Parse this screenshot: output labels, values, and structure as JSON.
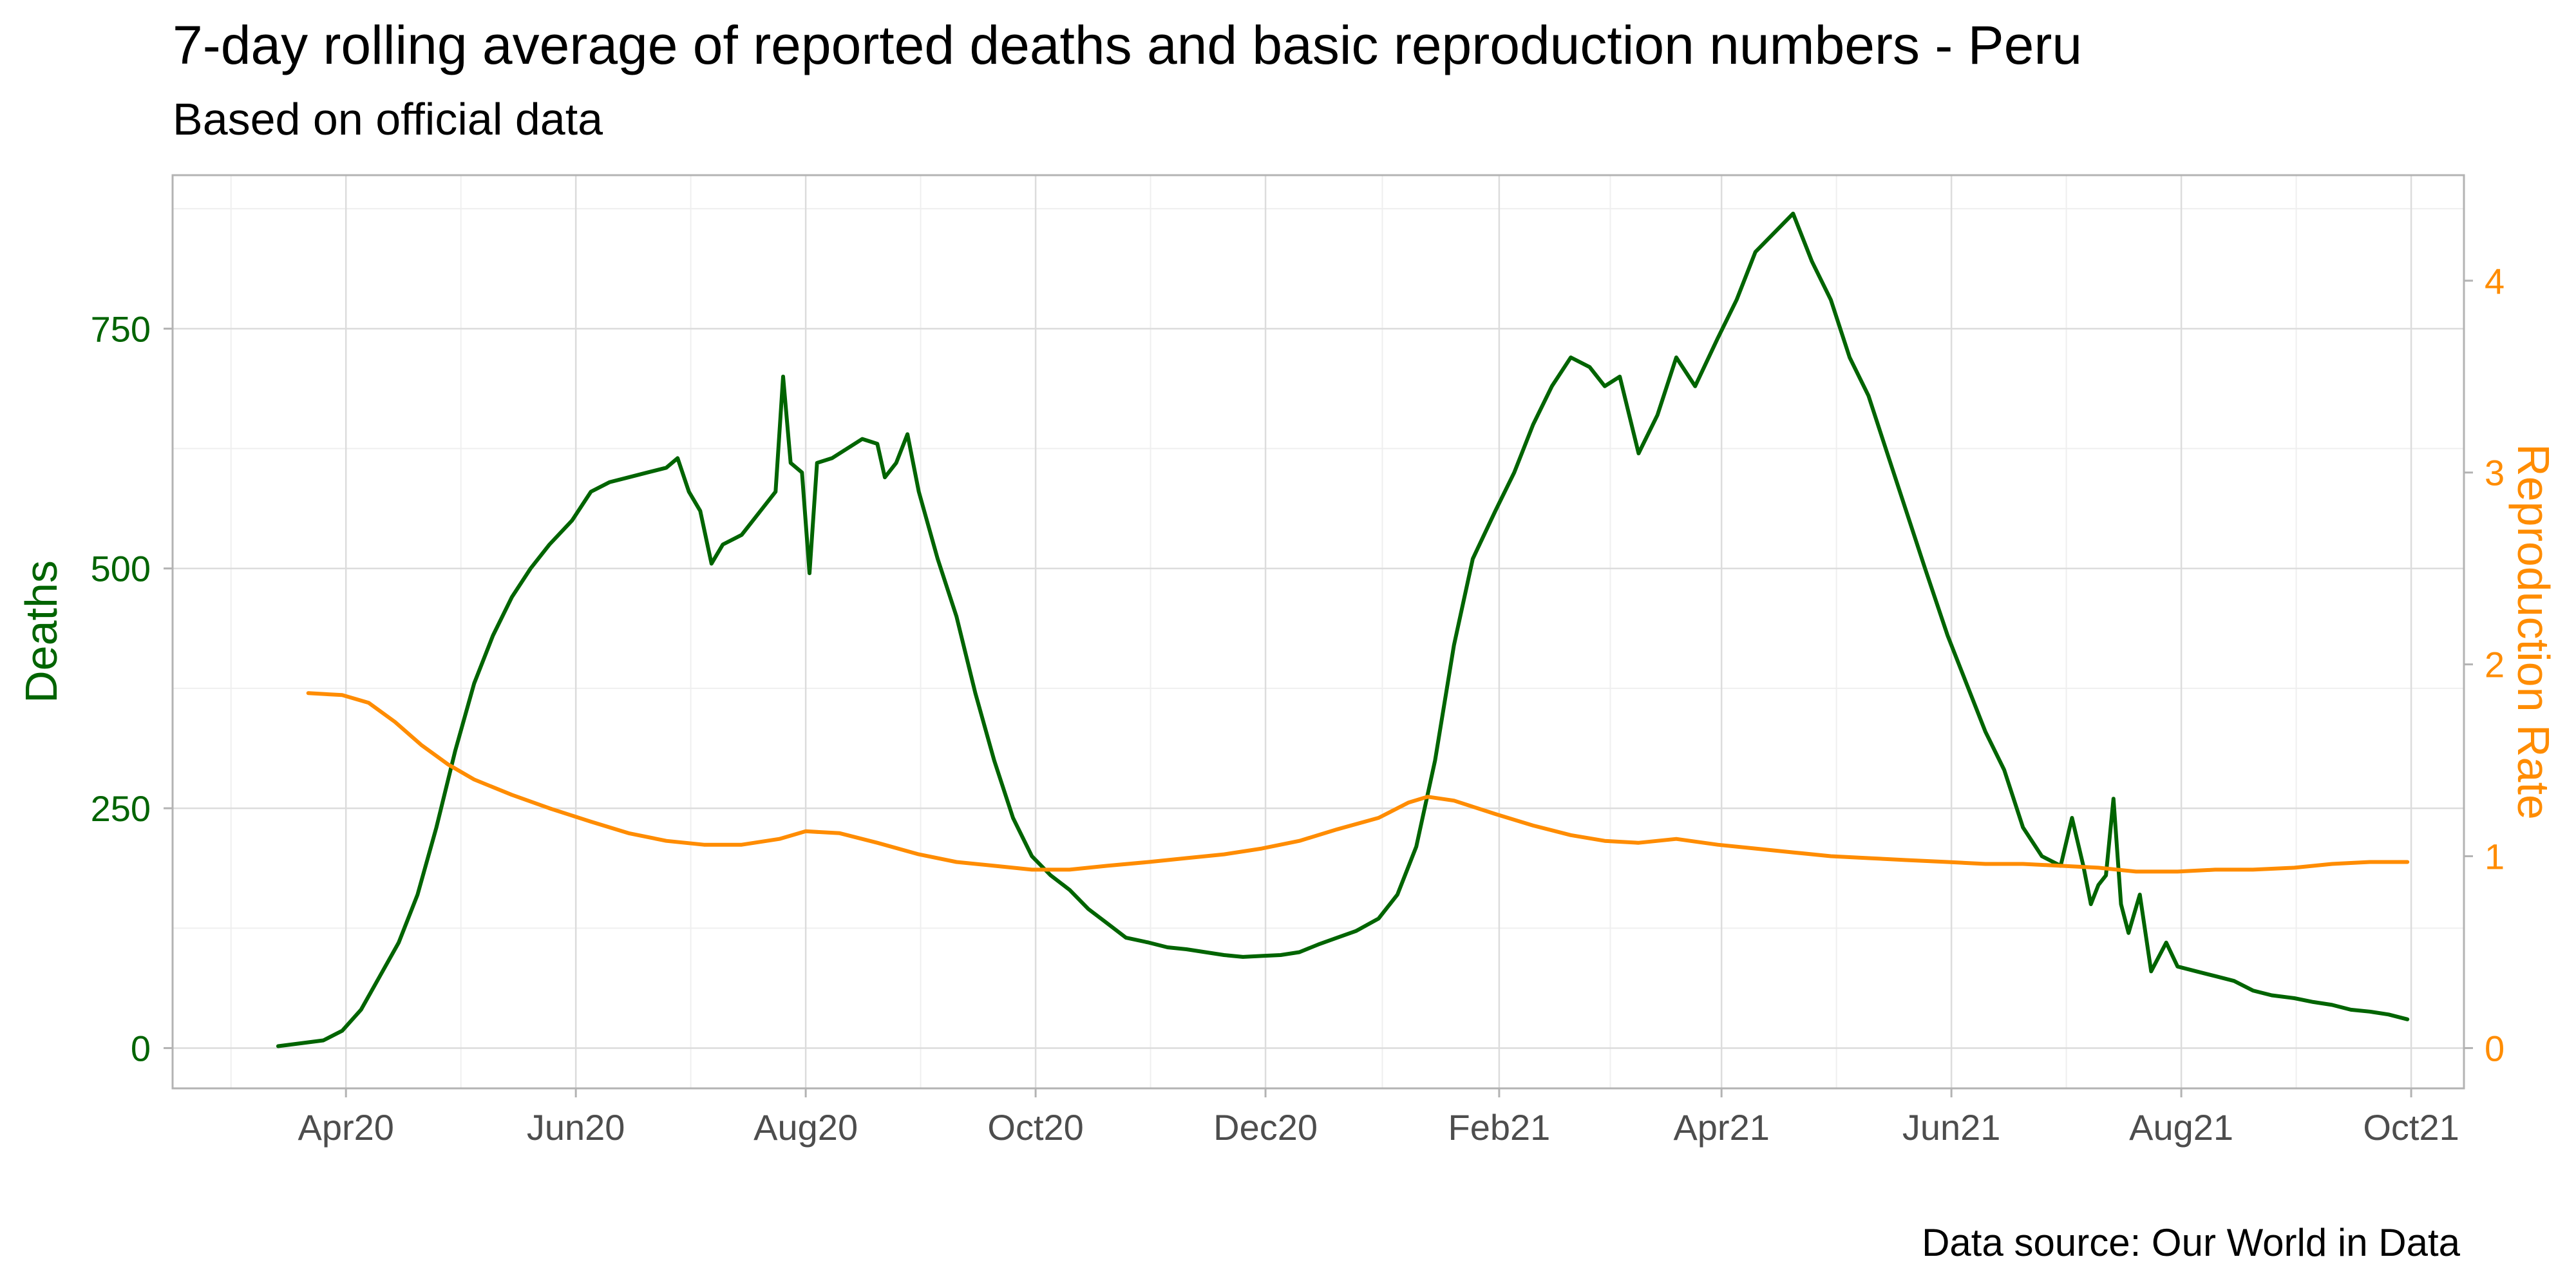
{
  "title": "7-day rolling average of reported deaths and basic reproduction numbers - Peru",
  "subtitle": "Based on official data",
  "caption": "Data source: Our World in Data",
  "colors": {
    "deaths": "#006400",
    "reproduction": "#FF8C00",
    "grid_major": "#DCDCDC",
    "grid_minor": "#EFEFEF",
    "panel_border": "#B3B3B3",
    "tick_text_x": "#4D4D4D"
  },
  "chart_data": {
    "type": "line",
    "grid": true,
    "x_axis": {
      "type": "date",
      "range": [
        "2020-02-15",
        "2021-10-15"
      ],
      "ticks": [
        {
          "date": "2020-04-01",
          "label": "Apr20"
        },
        {
          "date": "2020-06-01",
          "label": "Jun20"
        },
        {
          "date": "2020-08-01",
          "label": "Aug20"
        },
        {
          "date": "2020-10-01",
          "label": "Oct20"
        },
        {
          "date": "2020-12-01",
          "label": "Dec20"
        },
        {
          "date": "2021-02-01",
          "label": "Feb21"
        },
        {
          "date": "2021-04-01",
          "label": "Apr21"
        },
        {
          "date": "2021-06-01",
          "label": "Jun21"
        },
        {
          "date": "2021-08-01",
          "label": "Aug21"
        },
        {
          "date": "2021-10-01",
          "label": "Oct21"
        }
      ]
    },
    "y_left": {
      "label": "Deaths",
      "range": [
        -42,
        910
      ],
      "ticks": [
        0,
        250,
        500,
        750
      ],
      "tick_labels": [
        "0",
        "250",
        "500",
        "750"
      ]
    },
    "y_right": {
      "label": "Reproduction Rate",
      "range": [
        -0.21,
        4.55
      ],
      "ticks": [
        0,
        1,
        2,
        3,
        4
      ],
      "tick_labels": [
        "0",
        "1",
        "2",
        "3",
        "4"
      ]
    },
    "series": [
      {
        "axis": "left",
        "points": [
          [
            "2020-03-14",
            2
          ],
          [
            "2020-03-20",
            5
          ],
          [
            "2020-03-26",
            8
          ],
          [
            "2020-03-31",
            18
          ],
          [
            "2020-04-05",
            40
          ],
          [
            "2020-04-10",
            75
          ],
          [
            "2020-04-15",
            110
          ],
          [
            "2020-04-20",
            160
          ],
          [
            "2020-04-25",
            230
          ],
          [
            "2020-04-30",
            310
          ],
          [
            "2020-05-05",
            380
          ],
          [
            "2020-05-10",
            430
          ],
          [
            "2020-05-15",
            470
          ],
          [
            "2020-05-20",
            500
          ],
          [
            "2020-05-25",
            525
          ],
          [
            "2020-05-31",
            550
          ],
          [
            "2020-06-05",
            580
          ],
          [
            "2020-06-10",
            590
          ],
          [
            "2020-06-15",
            595
          ],
          [
            "2020-06-20",
            600
          ],
          [
            "2020-06-25",
            605
          ],
          [
            "2020-06-28",
            615
          ],
          [
            "2020-07-01",
            580
          ],
          [
            "2020-07-04",
            560
          ],
          [
            "2020-07-07",
            505
          ],
          [
            "2020-07-10",
            525
          ],
          [
            "2020-07-15",
            535
          ],
          [
            "2020-07-20",
            560
          ],
          [
            "2020-07-24",
            580
          ],
          [
            "2020-07-26",
            700
          ],
          [
            "2020-07-28",
            610
          ],
          [
            "2020-07-31",
            600
          ],
          [
            "2020-08-02",
            495
          ],
          [
            "2020-08-04",
            610
          ],
          [
            "2020-08-08",
            615
          ],
          [
            "2020-08-12",
            625
          ],
          [
            "2020-08-16",
            635
          ],
          [
            "2020-08-20",
            630
          ],
          [
            "2020-08-22",
            595
          ],
          [
            "2020-08-25",
            610
          ],
          [
            "2020-08-28",
            640
          ],
          [
            "2020-08-31",
            580
          ],
          [
            "2020-09-05",
            510
          ],
          [
            "2020-09-10",
            450
          ],
          [
            "2020-09-15",
            370
          ],
          [
            "2020-09-20",
            300
          ],
          [
            "2020-09-25",
            240
          ],
          [
            "2020-09-30",
            200
          ],
          [
            "2020-10-05",
            180
          ],
          [
            "2020-10-10",
            165
          ],
          [
            "2020-10-15",
            145
          ],
          [
            "2020-10-20",
            130
          ],
          [
            "2020-10-25",
            115
          ],
          [
            "2020-10-31",
            110
          ],
          [
            "2020-11-05",
            105
          ],
          [
            "2020-11-10",
            103
          ],
          [
            "2020-11-15",
            100
          ],
          [
            "2020-11-20",
            97
          ],
          [
            "2020-11-25",
            95
          ],
          [
            "2020-11-30",
            96
          ],
          [
            "2020-12-05",
            97
          ],
          [
            "2020-12-10",
            100
          ],
          [
            "2020-12-15",
            108
          ],
          [
            "2020-12-20",
            115
          ],
          [
            "2020-12-25",
            122
          ],
          [
            "2020-12-31",
            135
          ],
          [
            "2021-01-05",
            160
          ],
          [
            "2021-01-10",
            210
          ],
          [
            "2021-01-15",
            300
          ],
          [
            "2021-01-20",
            420
          ],
          [
            "2021-01-25",
            510
          ],
          [
            "2021-01-31",
            560
          ],
          [
            "2021-02-05",
            600
          ],
          [
            "2021-02-10",
            650
          ],
          [
            "2021-02-15",
            690
          ],
          [
            "2021-02-20",
            720
          ],
          [
            "2021-02-25",
            710
          ],
          [
            "2021-03-01",
            690
          ],
          [
            "2021-03-05",
            700
          ],
          [
            "2021-03-10",
            620
          ],
          [
            "2021-03-15",
            660
          ],
          [
            "2021-03-20",
            720
          ],
          [
            "2021-03-25",
            690
          ],
          [
            "2021-03-31",
            740
          ],
          [
            "2021-04-05",
            780
          ],
          [
            "2021-04-10",
            830
          ],
          [
            "2021-04-15",
            850
          ],
          [
            "2021-04-20",
            870
          ],
          [
            "2021-04-25",
            820
          ],
          [
            "2021-04-30",
            780
          ],
          [
            "2021-05-05",
            720
          ],
          [
            "2021-05-10",
            680
          ],
          [
            "2021-05-15",
            620
          ],
          [
            "2021-05-20",
            560
          ],
          [
            "2021-05-25",
            500
          ],
          [
            "2021-05-31",
            430
          ],
          [
            "2021-06-05",
            380
          ],
          [
            "2021-06-10",
            330
          ],
          [
            "2021-06-15",
            290
          ],
          [
            "2021-06-20",
            230
          ],
          [
            "2021-06-25",
            200
          ],
          [
            "2021-06-30",
            190
          ],
          [
            "2021-07-03",
            240
          ],
          [
            "2021-07-06",
            190
          ],
          [
            "2021-07-08",
            150
          ],
          [
            "2021-07-10",
            170
          ],
          [
            "2021-07-12",
            180
          ],
          [
            "2021-07-14",
            260
          ],
          [
            "2021-07-16",
            150
          ],
          [
            "2021-07-18",
            120
          ],
          [
            "2021-07-21",
            160
          ],
          [
            "2021-07-24",
            80
          ],
          [
            "2021-07-28",
            110
          ],
          [
            "2021-07-31",
            85
          ],
          [
            "2021-08-05",
            80
          ],
          [
            "2021-08-10",
            75
          ],
          [
            "2021-08-15",
            70
          ],
          [
            "2021-08-20",
            60
          ],
          [
            "2021-08-25",
            55
          ],
          [
            "2021-08-31",
            52
          ],
          [
            "2021-09-05",
            48
          ],
          [
            "2021-09-10",
            45
          ],
          [
            "2021-09-15",
            40
          ],
          [
            "2021-09-20",
            38
          ],
          [
            "2021-09-25",
            35
          ],
          [
            "2021-09-30",
            30
          ]
        ]
      },
      {
        "axis": "right",
        "points": [
          [
            "2020-03-22",
            1.85
          ],
          [
            "2020-03-31",
            1.84
          ],
          [
            "2020-04-07",
            1.8
          ],
          [
            "2020-04-14",
            1.7
          ],
          [
            "2020-04-21",
            1.58
          ],
          [
            "2020-04-28",
            1.48
          ],
          [
            "2020-05-05",
            1.4
          ],
          [
            "2020-05-15",
            1.32
          ],
          [
            "2020-05-25",
            1.25
          ],
          [
            "2020-06-05",
            1.18
          ],
          [
            "2020-06-15",
            1.12
          ],
          [
            "2020-06-25",
            1.08
          ],
          [
            "2020-07-05",
            1.06
          ],
          [
            "2020-07-15",
            1.06
          ],
          [
            "2020-07-25",
            1.09
          ],
          [
            "2020-08-01",
            1.13
          ],
          [
            "2020-08-10",
            1.12
          ],
          [
            "2020-08-20",
            1.07
          ],
          [
            "2020-08-31",
            1.01
          ],
          [
            "2020-09-10",
            0.97
          ],
          [
            "2020-09-20",
            0.95
          ],
          [
            "2020-09-30",
            0.93
          ],
          [
            "2020-10-10",
            0.93
          ],
          [
            "2020-10-20",
            0.95
          ],
          [
            "2020-10-31",
            0.97
          ],
          [
            "2020-11-10",
            0.99
          ],
          [
            "2020-11-20",
            1.01
          ],
          [
            "2020-11-30",
            1.04
          ],
          [
            "2020-12-10",
            1.08
          ],
          [
            "2020-12-20",
            1.14
          ],
          [
            "2020-12-31",
            1.2
          ],
          [
            "2021-01-08",
            1.28
          ],
          [
            "2021-01-13",
            1.31
          ],
          [
            "2021-01-20",
            1.29
          ],
          [
            "2021-01-31",
            1.22
          ],
          [
            "2021-02-10",
            1.16
          ],
          [
            "2021-02-20",
            1.11
          ],
          [
            "2021-03-01",
            1.08
          ],
          [
            "2021-03-10",
            1.07
          ],
          [
            "2021-03-20",
            1.09
          ],
          [
            "2021-03-31",
            1.06
          ],
          [
            "2021-04-10",
            1.04
          ],
          [
            "2021-04-20",
            1.02
          ],
          [
            "2021-04-30",
            1.0
          ],
          [
            "2021-05-10",
            0.99
          ],
          [
            "2021-05-20",
            0.98
          ],
          [
            "2021-05-31",
            0.97
          ],
          [
            "2021-06-10",
            0.96
          ],
          [
            "2021-06-20",
            0.96
          ],
          [
            "2021-06-30",
            0.95
          ],
          [
            "2021-07-10",
            0.94
          ],
          [
            "2021-07-20",
            0.92
          ],
          [
            "2021-07-31",
            0.92
          ],
          [
            "2021-08-10",
            0.93
          ],
          [
            "2021-08-20",
            0.93
          ],
          [
            "2021-08-31",
            0.94
          ],
          [
            "2021-09-10",
            0.96
          ],
          [
            "2021-09-20",
            0.97
          ],
          [
            "2021-09-30",
            0.97
          ]
        ]
      }
    ]
  }
}
